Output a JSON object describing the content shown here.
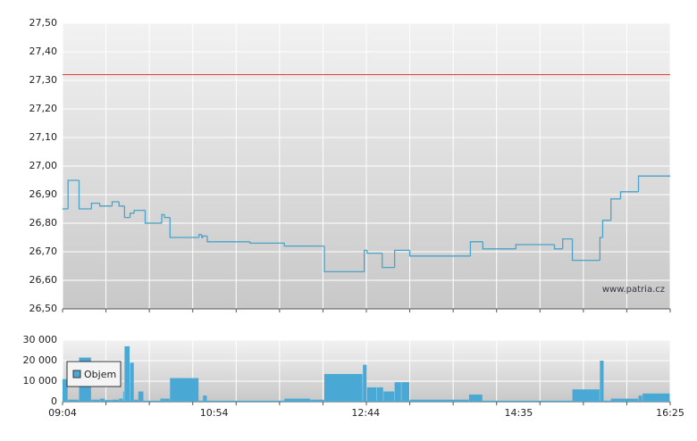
{
  "chart_data": [
    {
      "type": "line",
      "xlim": [
        "09:04",
        "16:25"
      ],
      "ylim": [
        26.5,
        27.5
      ],
      "yticks": [
        {
          "value": 26.5,
          "label": "26,50"
        },
        {
          "value": 26.6,
          "label": "26,60"
        },
        {
          "value": 26.7,
          "label": "26,70"
        },
        {
          "value": 26.8,
          "label": "26,80"
        },
        {
          "value": 26.9,
          "label": "26,90"
        },
        {
          "value": 27.0,
          "label": "27,00"
        },
        {
          "value": 27.1,
          "label": "27,10"
        },
        {
          "value": 27.2,
          "label": "27,20"
        },
        {
          "value": 27.3,
          "label": "27,30"
        },
        {
          "value": 27.4,
          "label": "27,40"
        },
        {
          "value": 27.5,
          "label": "27,50"
        }
      ],
      "grid": true,
      "reference_line": {
        "value": 27.32,
        "color": "#e03030"
      },
      "annotation": "www.patria.cz",
      "series": [
        {
          "color": "#4aa3c8",
          "x": [
            "09:04",
            "09:08",
            "09:16",
            "09:25",
            "09:31",
            "09:40",
            "09:45",
            "09:49",
            "09:53",
            "09:56",
            "10:04",
            "10:16",
            "10:18",
            "10:22",
            "10:43",
            "10:45",
            "10:46",
            "10:49",
            "11:20",
            "11:45",
            "12:14",
            "12:43",
            "12:45",
            "12:56",
            "13:05",
            "13:16",
            "14:00",
            "14:09",
            "14:33",
            "15:01",
            "15:07",
            "15:14",
            "15:34",
            "15:36",
            "15:42",
            "15:49",
            "16:02"
          ],
          "values": [
            26.85,
            26.95,
            26.85,
            26.87,
            26.86,
            26.875,
            26.86,
            26.82,
            26.835,
            26.845,
            26.8,
            26.83,
            26.82,
            26.75,
            26.76,
            26.75,
            26.755,
            26.735,
            26.73,
            26.72,
            26.63,
            26.705,
            26.695,
            26.645,
            26.705,
            26.685,
            26.735,
            26.71,
            26.725,
            26.71,
            26.745,
            26.67,
            26.75,
            26.81,
            26.885,
            26.91,
            26.965
          ]
        }
      ]
    },
    {
      "type": "bar",
      "xlim": [
        "09:04",
        "16:25"
      ],
      "xticks": [
        "09:04",
        "10:54",
        "12:44",
        "14:35",
        "16:25"
      ],
      "ylim": [
        0,
        30000
      ],
      "yticks": [
        {
          "value": 0,
          "label": "0"
        },
        {
          "value": 10000,
          "label": "10 000"
        },
        {
          "value": 20000,
          "label": "20 000"
        },
        {
          "value": 30000,
          "label": "30 000"
        }
      ],
      "grid": true,
      "legend": "top-left",
      "series": [
        {
          "name": "Objem",
          "color": "#4aa8d4",
          "x": [
            "09:04",
            "09:08",
            "09:16",
            "09:25",
            "09:31",
            "09:35",
            "09:40",
            "09:45",
            "09:48",
            "09:49",
            "09:53",
            "09:56",
            "09:59",
            "10:03",
            "10:15",
            "10:22",
            "10:43",
            "10:46",
            "10:49",
            "11:45",
            "12:04",
            "12:14",
            "12:42",
            "12:45",
            "12:52",
            "12:57",
            "13:05",
            "13:10",
            "13:16",
            "13:59",
            "14:09",
            "15:14",
            "15:34",
            "15:37",
            "15:42",
            "16:02",
            "16:05"
          ],
          "values": [
            11000,
            1000,
            21500,
            1000,
            1500,
            800,
            1000,
            1500,
            5000,
            27000,
            19000,
            1000,
            5000,
            500,
            1500,
            11500,
            500,
            3000,
            500,
            1500,
            1000,
            13500,
            18000,
            7000,
            7000,
            5000,
            9500,
            9500,
            1000,
            3500,
            500,
            6000,
            20000,
            500,
            1500,
            3000,
            4000
          ]
        }
      ]
    }
  ]
}
